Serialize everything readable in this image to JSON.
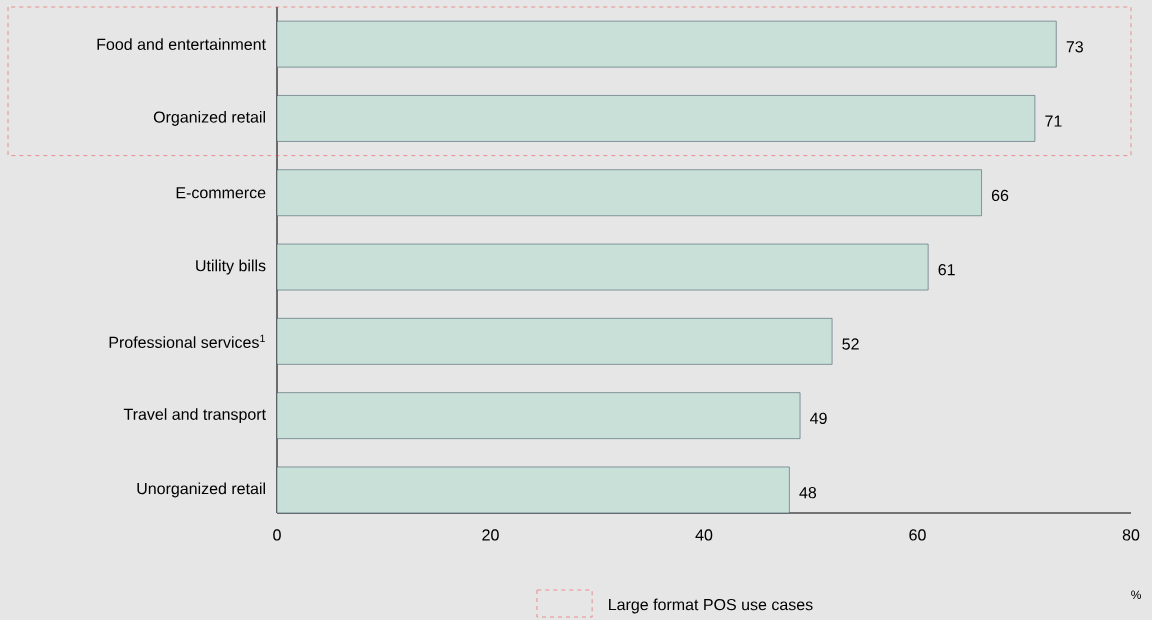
{
  "chart_data": {
    "type": "bar",
    "orientation": "horizontal",
    "categories": [
      "Food and entertainment",
      "Organized retail",
      "E-commerce",
      "Utility bills",
      "Professional services$^{1}$",
      "Travel and transport",
      "Unorganized retail"
    ],
    "values": [
      73,
      71,
      66,
      61,
      52,
      49,
      48
    ],
    "color": "#c8e0d8",
    "xlim": [
      0,
      80
    ],
    "xticks": [
      0,
      20,
      40,
      60,
      80
    ],
    "data_labels": true,
    "annotations": [
      "Large format POS use cases",
      "%"
    ]
  }
}
